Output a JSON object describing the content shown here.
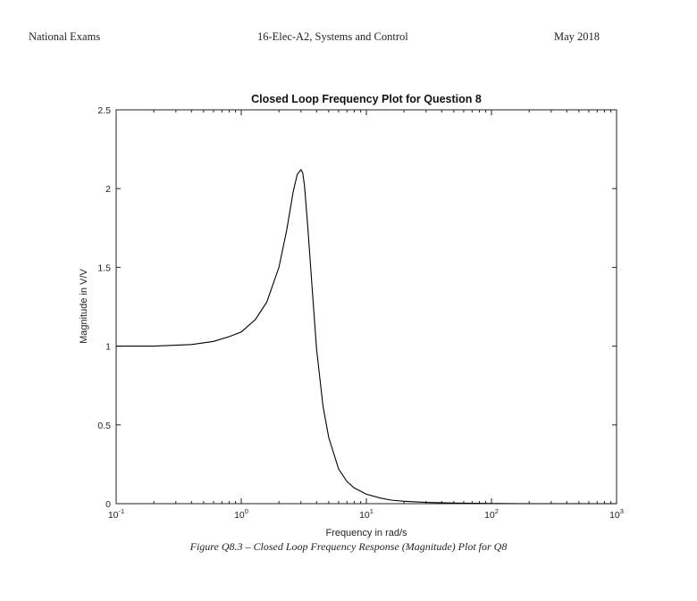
{
  "header": {
    "left": "National Exams",
    "center": "16-Elec-A2, Systems and Control",
    "right": "May 2018"
  },
  "figure": {
    "caption": "Figure Q8.3 – Closed Loop Frequency Response (Magnitude) Plot for Q8"
  },
  "chart_data": {
    "type": "line",
    "title": "Closed Loop Frequency Plot for Question 8",
    "xlabel": "Frequency in rad/s",
    "ylabel": "Magnitude in V/V",
    "xscale": "log",
    "xlim": [
      0.1,
      1000
    ],
    "ylim": [
      0,
      2.5
    ],
    "xticks": [
      0.1,
      1,
      10,
      100,
      1000
    ],
    "xtick_labels": [
      {
        "base": "10",
        "exp": "-1"
      },
      {
        "base": "10",
        "exp": "0"
      },
      {
        "base": "10",
        "exp": "1"
      },
      {
        "base": "10",
        "exp": "2"
      },
      {
        "base": "10",
        "exp": "3"
      }
    ],
    "yticks": [
      0,
      0.5,
      1,
      1.5,
      2,
      2.5
    ],
    "ytick_labels": [
      "0",
      "0.5",
      "1",
      "1.5",
      "2",
      "2.5"
    ],
    "grid": false,
    "line_color": "#000000",
    "series": [
      {
        "x": [
          0.1,
          0.2,
          0.4,
          0.6,
          0.8,
          1.0,
          1.3,
          1.6,
          2.0,
          2.3,
          2.6,
          2.8,
          3.0,
          3.1,
          3.2,
          3.4,
          3.7,
          4.0,
          4.5,
          5.0,
          6.0,
          7.0,
          8.0,
          10,
          13,
          16,
          20,
          30,
          50,
          100,
          200,
          500,
          1000
        ],
        "y": [
          1.0,
          1.0,
          1.01,
          1.03,
          1.06,
          1.09,
          1.17,
          1.28,
          1.5,
          1.73,
          1.98,
          2.09,
          2.12,
          2.1,
          2.02,
          1.76,
          1.35,
          0.98,
          0.62,
          0.42,
          0.22,
          0.14,
          0.1,
          0.06,
          0.035,
          0.022,
          0.015,
          0.008,
          0.004,
          0.001,
          0.0,
          0.0,
          0.0
        ]
      }
    ]
  }
}
